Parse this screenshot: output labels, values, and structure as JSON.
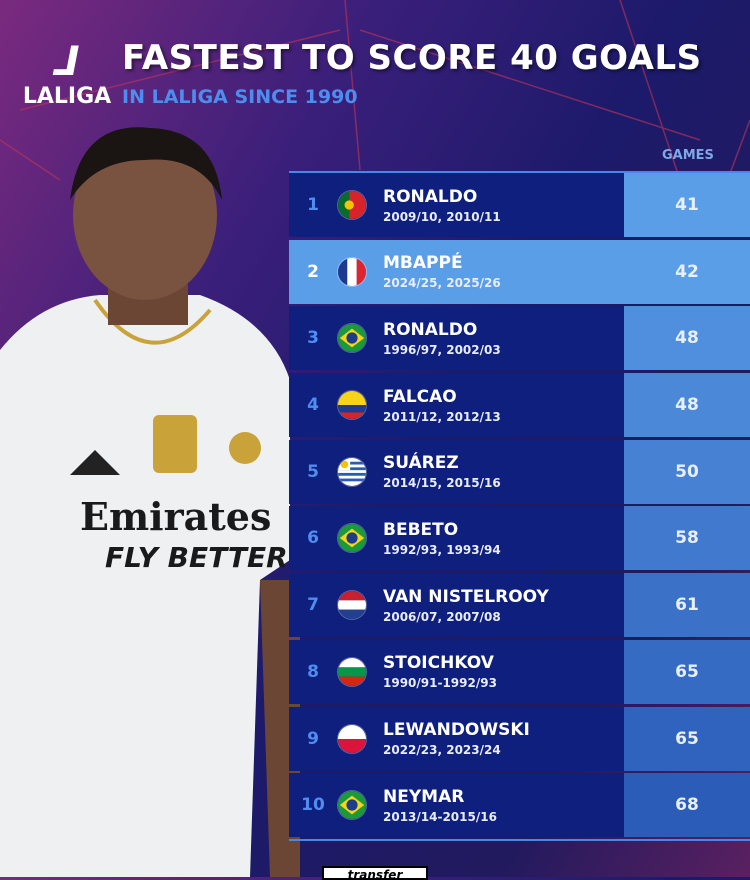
{
  "header": {
    "logo_text": "LALIGA",
    "title": "FASTEST TO SCORE 40 GOALS",
    "subtitle": "IN LALIGA SINCE 1990"
  },
  "table": {
    "games_header": "GAMES",
    "rows": [
      {
        "rank": "1",
        "name": "RONALDO",
        "seasons": "2009/10, 2010/11",
        "games": "41",
        "country": "portugal",
        "highlight": false
      },
      {
        "rank": "2",
        "name": "MBAPPÉ",
        "seasons": "2024/25, 2025/26",
        "games": "42",
        "country": "france",
        "highlight": true
      },
      {
        "rank": "3",
        "name": "RONALDO",
        "seasons": "1996/97, 2002/03",
        "games": "48",
        "country": "brazil",
        "highlight": false
      },
      {
        "rank": "4",
        "name": "FALCAO",
        "seasons": "2011/12, 2012/13",
        "games": "48",
        "country": "colombia",
        "highlight": false
      },
      {
        "rank": "5",
        "name": "SUÁREZ",
        "seasons": "2014/15, 2015/16",
        "games": "50",
        "country": "uruguay",
        "highlight": false
      },
      {
        "rank": "6",
        "name": "BEBETO",
        "seasons": "1992/93, 1993/94",
        "games": "58",
        "country": "brazil",
        "highlight": false
      },
      {
        "rank": "7",
        "name": "VAN NISTELROOY",
        "seasons": "2006/07, 2007/08",
        "games": "61",
        "country": "netherlands",
        "highlight": false
      },
      {
        "rank": "8",
        "name": "STOICHKOV",
        "seasons": "1990/91-1992/93",
        "games": "65",
        "country": "bulgaria",
        "highlight": false
      },
      {
        "rank": "9",
        "name": "LEWANDOWSKI",
        "seasons": "2022/23, 2023/24",
        "games": "65",
        "country": "poland",
        "highlight": false
      },
      {
        "rank": "10",
        "name": "NEYMAR",
        "seasons": "2013/14-2015/16",
        "games": "68",
        "country": "brazil",
        "highlight": false
      }
    ]
  },
  "player": {
    "sponsor_line1": "Emirates",
    "sponsor_line2": "FLY BETTER"
  },
  "footer": {
    "brand": "transfer"
  },
  "colors": {
    "row_dark": "#0f1f7e",
    "row_highlight": "#5b9ee8",
    "games_top": "#5b9ee8",
    "games_bottom": "#2b5cb8",
    "accent": "#4d8df0"
  }
}
